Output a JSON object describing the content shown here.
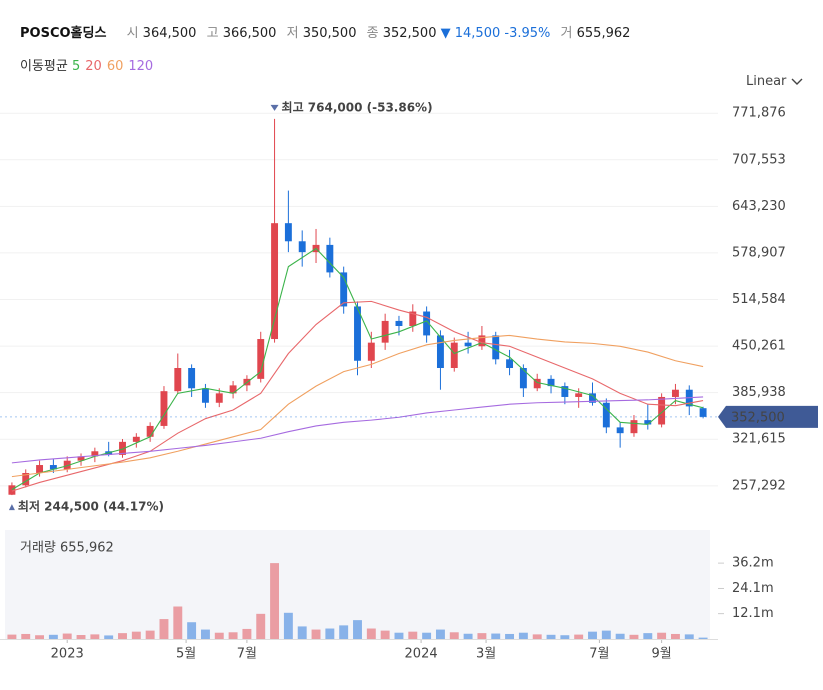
{
  "header": {
    "name": "POSCO홀딩스",
    "open_key": "시",
    "open": "364,500",
    "high_key": "고",
    "high": "366,500",
    "low_key": "저",
    "low": "350,500",
    "close_key": "종",
    "close": "352,500",
    "change": "▼ 14,500",
    "change_pct": "-3.95%",
    "volume_key": "거",
    "volume": "655,962"
  },
  "ma_legend": {
    "title": "이동평균",
    "items": [
      "5",
      "20",
      "60",
      "120"
    ]
  },
  "scale_mode": "Linear",
  "chart_data": {
    "type": "candlestick",
    "up_color": "#e0464e",
    "down_color": "#1b6fd9",
    "candles": [
      [
        245000,
        262000,
        244500,
        258000
      ],
      [
        258000,
        280000,
        255000,
        275000
      ],
      [
        275000,
        292000,
        270000,
        286000
      ],
      [
        286000,
        294000,
        275000,
        280000
      ],
      [
        280000,
        298000,
        276000,
        292000
      ],
      [
        292000,
        302000,
        285000,
        298000
      ],
      [
        298000,
        310000,
        290000,
        305000
      ],
      [
        305000,
        318000,
        298000,
        300000
      ],
      [
        300000,
        322000,
        296000,
        318000
      ],
      [
        318000,
        330000,
        310000,
        325000
      ],
      [
        325000,
        345000,
        318000,
        340000
      ],
      [
        340000,
        395000,
        336000,
        388000
      ],
      [
        388000,
        440000,
        385000,
        420000
      ],
      [
        420000,
        425000,
        380000,
        392000
      ],
      [
        392000,
        398000,
        365000,
        372000
      ],
      [
        372000,
        392000,
        366000,
        385000
      ],
      [
        385000,
        402000,
        378000,
        396000
      ],
      [
        396000,
        410000,
        388000,
        405000
      ],
      [
        405000,
        470000,
        400000,
        460000
      ],
      [
        460000,
        764000,
        455000,
        620000
      ],
      [
        620000,
        665000,
        580000,
        595000
      ],
      [
        595000,
        610000,
        560000,
        580000
      ],
      [
        580000,
        612000,
        565000,
        590000
      ],
      [
        590000,
        600000,
        545000,
        552000
      ],
      [
        552000,
        560000,
        495000,
        505000
      ],
      [
        505000,
        512000,
        410000,
        430000
      ],
      [
        430000,
        470000,
        420000,
        455000
      ],
      [
        455000,
        495000,
        445000,
        485000
      ],
      [
        485000,
        492000,
        465000,
        478000
      ],
      [
        478000,
        508000,
        470000,
        498000
      ],
      [
        498000,
        505000,
        455000,
        465000
      ],
      [
        465000,
        472000,
        390000,
        420000
      ],
      [
        420000,
        462000,
        415000,
        455000
      ],
      [
        455000,
        470000,
        440000,
        450000
      ],
      [
        450000,
        478000,
        445000,
        465000
      ],
      [
        465000,
        470000,
        425000,
        432000
      ],
      [
        432000,
        445000,
        410000,
        420000
      ],
      [
        420000,
        425000,
        380000,
        392000
      ],
      [
        392000,
        412000,
        388000,
        405000
      ],
      [
        405000,
        410000,
        385000,
        395000
      ],
      [
        395000,
        400000,
        370000,
        380000
      ],
      [
        380000,
        392000,
        365000,
        385000
      ],
      [
        385000,
        400000,
        368000,
        372000
      ],
      [
        372000,
        378000,
        330000,
        338000
      ],
      [
        338000,
        345000,
        310000,
        330000
      ],
      [
        330000,
        355000,
        325000,
        348000
      ],
      [
        348000,
        370000,
        335000,
        342000
      ],
      [
        342000,
        385000,
        338000,
        380000
      ],
      [
        380000,
        398000,
        370000,
        390000
      ],
      [
        390000,
        396000,
        355000,
        367000
      ],
      [
        364500,
        366500,
        350500,
        352500
      ]
    ],
    "ylim": [
      217000,
      797000
    ],
    "yticks": [
      {
        "value": 257292,
        "label": "257,292"
      },
      {
        "value": 321615,
        "label": "321,615"
      },
      {
        "value": 385938,
        "label": "385,938"
      },
      {
        "value": 450261,
        "label": "450,261"
      },
      {
        "value": 514584,
        "label": "514,584"
      },
      {
        "value": 578907,
        "label": "578,907"
      },
      {
        "value": 643230,
        "label": "643,230"
      },
      {
        "value": 707553,
        "label": "707,553"
      },
      {
        "value": 771876,
        "label": "771,876"
      }
    ],
    "xlim": [
      -0.5,
      50.5
    ],
    "xticks": [
      {
        "value": 4,
        "label": "2023"
      },
      {
        "value": 12.6,
        "label": "5월"
      },
      {
        "value": 17,
        "label": "7월"
      },
      {
        "value": 29.6,
        "label": "2024"
      },
      {
        "value": 34.3,
        "label": "3월"
      },
      {
        "value": 42.5,
        "label": "7월"
      },
      {
        "value": 47,
        "label": "9월"
      }
    ],
    "grid": true,
    "ma_x": [
      0,
      2,
      4,
      6,
      8,
      10,
      12,
      14,
      16,
      18,
      20,
      22,
      24,
      26,
      28,
      30,
      32,
      34,
      36,
      38,
      40,
      42,
      44,
      46,
      48,
      50
    ],
    "series": [
      {
        "name": "5",
        "color": "#3cb44b",
        "values": [
          252000,
          275000,
          285000,
          298000,
          308000,
          325000,
          385000,
          392000,
          385000,
          415000,
          560000,
          585000,
          545000,
          460000,
          470000,
          485000,
          440000,
          455000,
          435000,
          400000,
          392000,
          382000,
          345000,
          342000,
          375000,
          365000
        ]
      },
      {
        "name": "20",
        "color": "#e8686b",
        "values": [
          250000,
          262000,
          272000,
          282000,
          292000,
          305000,
          330000,
          350000,
          362000,
          385000,
          440000,
          480000,
          510000,
          512000,
          500000,
          490000,
          470000,
          455000,
          450000,
          435000,
          420000,
          405000,
          385000,
          370000,
          368000,
          375000
        ]
      },
      {
        "name": "60",
        "color": "#f0a060",
        "values": [
          270000,
          275000,
          280000,
          285000,
          290000,
          296000,
          305000,
          315000,
          325000,
          335000,
          370000,
          395000,
          415000,
          425000,
          440000,
          452000,
          458000,
          462000,
          465000,
          460000,
          456000,
          454000,
          450000,
          442000,
          430000,
          422000
        ]
      },
      {
        "name": "120",
        "color": "#a66be0",
        "values": [
          289000,
          293000,
          296000,
          299000,
          302000,
          305000,
          309000,
          313000,
          318000,
          323000,
          332000,
          340000,
          345000,
          348000,
          352000,
          358000,
          362000,
          366000,
          370000,
          372000,
          373000,
          374000,
          375000,
          376000,
          378000,
          380000
        ]
      }
    ],
    "high_mark": {
      "value": 764000,
      "label": "최고 764,000 (-53.86%)"
    },
    "low_mark": {
      "value": 244500,
      "label": "최저 244,500 (44.17%)"
    },
    "last_price": {
      "value": 352500,
      "label": "352,500"
    },
    "volume_title": "거래량 655,962",
    "volume": [
      2100000,
      2400000,
      1800000,
      2000000,
      2600000,
      1900000,
      2200000,
      1700000,
      2800000,
      3500000,
      4000000,
      9500000,
      15500000,
      8000000,
      4500000,
      3000000,
      3200000,
      4800000,
      12000000,
      36200000,
      12500000,
      6000000,
      4500000,
      5000000,
      6500000,
      9000000,
      5000000,
      4000000,
      3000000,
      3500000,
      3000000,
      4500000,
      3200000,
      2500000,
      2800000,
      2600000,
      2400000,
      3000000,
      2200000,
      2000000,
      1800000,
      2100000,
      3500000,
      4000000,
      2500000,
      2000000,
      2800000,
      3000000,
      2400000,
      2200000,
      655962
    ],
    "vlim": [
      0,
      52000000
    ],
    "vticks": [
      {
        "value": 12100000,
        "label": "12.1m"
      },
      {
        "value": 24100000,
        "label": "24.1m"
      },
      {
        "value": 36200000,
        "label": "36.2m"
      }
    ]
  }
}
